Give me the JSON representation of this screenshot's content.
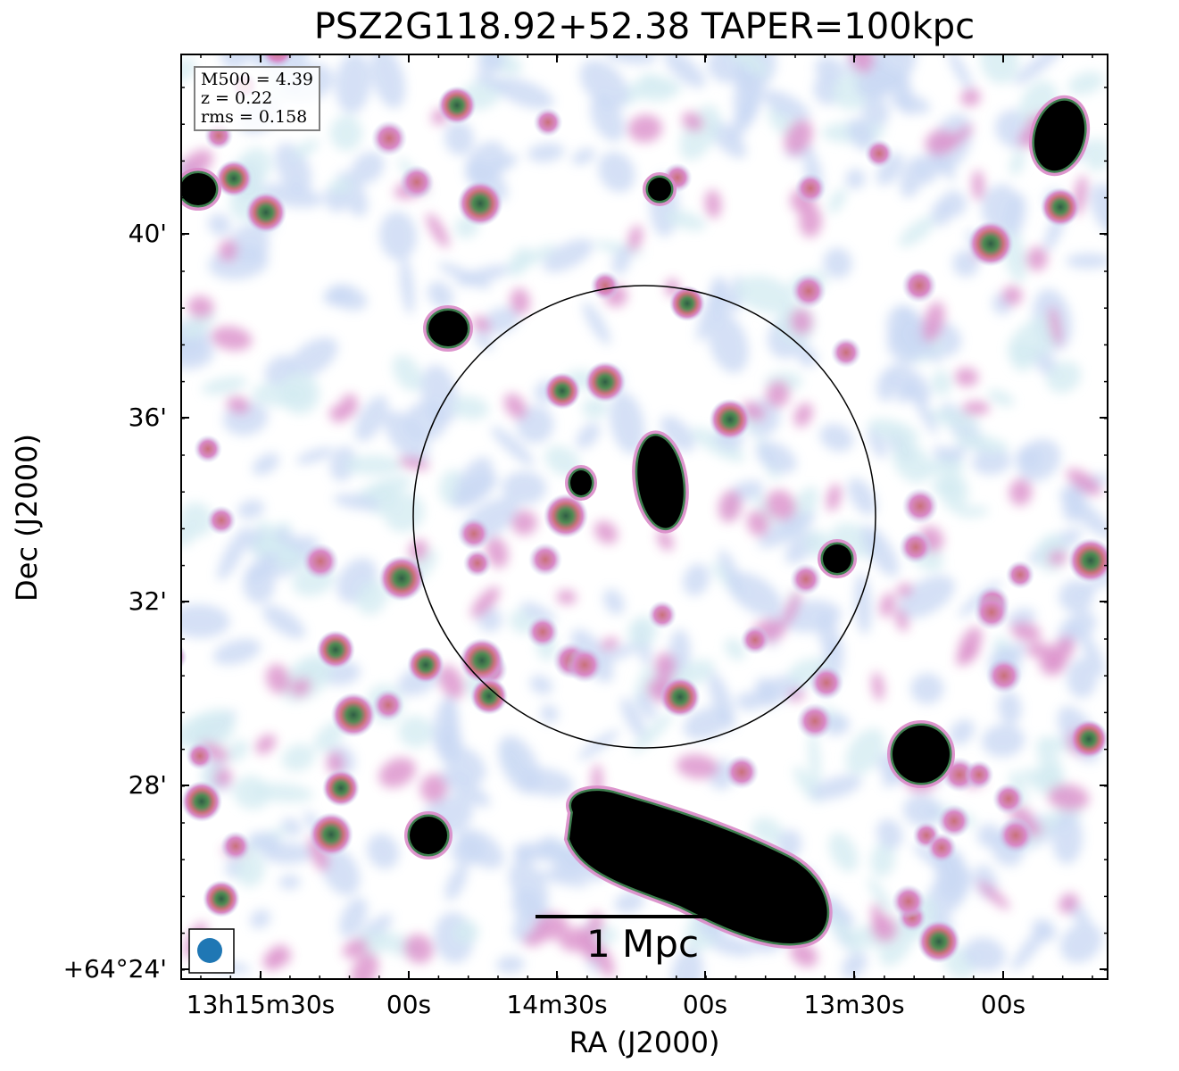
{
  "title": "PSZ2G118.92+52.38 TAPER=100kpc",
  "info": {
    "m500": "M500 = 4.39",
    "z": "z = 0.22",
    "rms": "rms = 0.158"
  },
  "axes": {
    "xlabel": "RA (J2000)",
    "ylabel": "Dec (J2000)",
    "xticks": [
      "13h15m30s",
      "00s",
      "14m30s",
      "00s",
      "13m30s",
      "00s"
    ],
    "yticks": [
      "40'",
      "36'",
      "32'",
      "28'",
      "+64°24'"
    ]
  },
  "scalebar": {
    "label": "1 Mpc"
  },
  "colors": {
    "background": "#ffffff",
    "faint": "#c4d4f2",
    "faint_cyan": "#cfeaf0",
    "pink": "#d98ac8",
    "red": "#c9717a",
    "green": "#3d7f4e",
    "core": "#000000",
    "beam": "#1f77b4"
  }
}
